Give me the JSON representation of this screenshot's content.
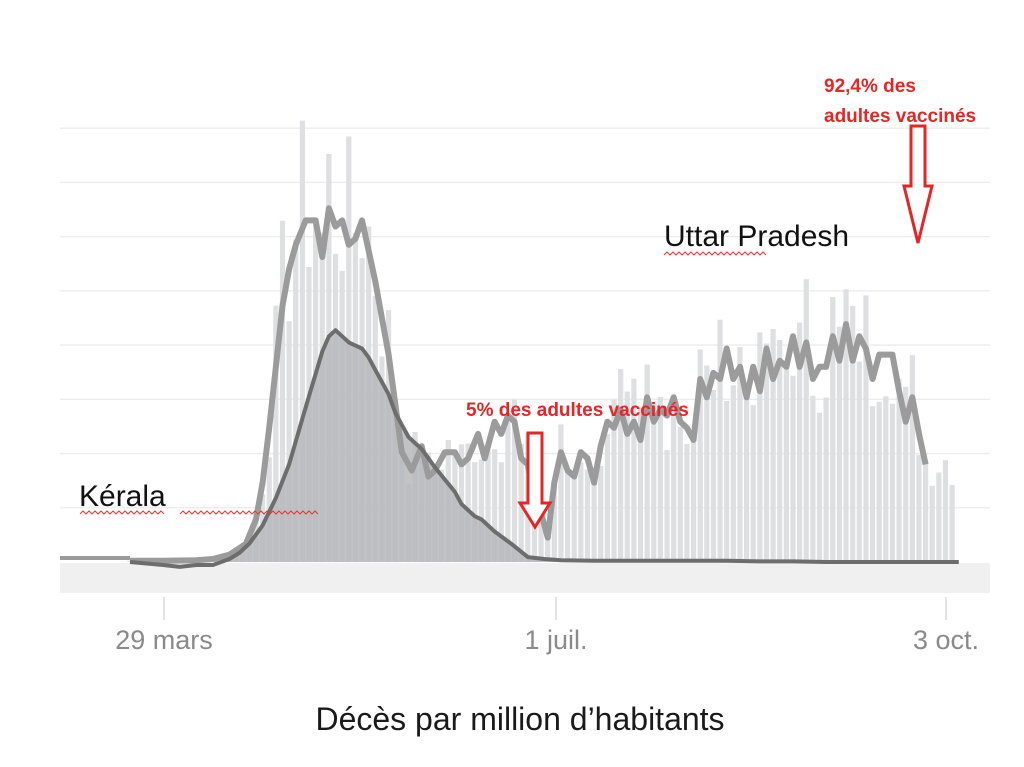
{
  "chart_data": {
    "type": "area",
    "title": "Décès par million d’habitants",
    "xlabel": "",
    "ylabel": "",
    "x_ticks": [
      "29 mars",
      "1 juil.",
      "3 oct."
    ],
    "grid": true,
    "series": [
      {
        "name": "Kérala",
        "label": "Kérala",
        "color": "#9b9b9b",
        "bar_color": "#dedfe1",
        "day_offsets": [
          0,
          10,
          20,
          25,
          30,
          35,
          38,
          40,
          42,
          44,
          46,
          48,
          50,
          53,
          56,
          58,
          60,
          62,
          64,
          66,
          68,
          70,
          72,
          74,
          76,
          78,
          80,
          82,
          85,
          88,
          90,
          92,
          95,
          98,
          100,
          102,
          105,
          107,
          110,
          112,
          114,
          116,
          118,
          120,
          122,
          124,
          126,
          128,
          130,
          132,
          134,
          136,
          138,
          140,
          142,
          144,
          146,
          148,
          150,
          152,
          154,
          156,
          158,
          160,
          162,
          164,
          166,
          168,
          170,
          172,
          174,
          176,
          178,
          180,
          182,
          184,
          186,
          188,
          190,
          192,
          194,
          196,
          198,
          200,
          202,
          204,
          206,
          208,
          210,
          212,
          214,
          216,
          218,
          220,
          222,
          224,
          226,
          228,
          230,
          232,
          234,
          236,
          238,
          240
        ],
        "values": [
          0.02,
          0.02,
          0.03,
          0.05,
          0.12,
          0.3,
          0.7,
          1.3,
          2.2,
          3.2,
          4.2,
          4.8,
          5.2,
          5.6,
          5.6,
          5.0,
          5.8,
          5.5,
          5.6,
          5.2,
          5.3,
          5.6,
          5.1,
          4.6,
          4.0,
          3.4,
          2.6,
          1.8,
          1.5,
          1.9,
          1.4,
          1.5,
          1.8,
          1.8,
          1.6,
          1.7,
          2.1,
          1.7,
          2.3,
          2.1,
          2.4,
          2.3,
          1.7,
          1.6,
          1.0,
          0.8,
          0.4,
          1.3,
          1.8,
          1.5,
          1.4,
          1.8,
          1.7,
          1.3,
          1.9,
          2.3,
          2.2,
          2.5,
          2.1,
          2.3,
          2.0,
          2.7,
          2.3,
          2.5,
          2.4,
          2.7,
          2.3,
          2.2,
          2.0,
          3.0,
          2.7,
          3.1,
          3.0,
          3.5,
          3.0,
          3.2,
          2.7,
          3.2,
          2.8,
          3.5,
          3.0,
          3.3,
          3.2,
          3.7,
          3.2,
          3.6,
          3.0,
          3.2,
          3.2,
          3.7,
          3.3,
          3.9,
          3.3,
          3.7,
          3.5,
          3.0,
          3.4,
          3.4,
          3.4,
          2.8,
          2.3,
          2.7,
          2.1,
          1.6
        ]
      },
      {
        "name": "Uttar Pradesh",
        "label": "Uttar Pradesh",
        "color": "#6d6d6d",
        "fill_color": "#b6b8bb",
        "day_offsets": [
          0,
          10,
          15,
          20,
          25,
          30,
          33,
          36,
          40,
          44,
          48,
          52,
          55,
          58,
          60,
          62,
          64,
          66,
          68,
          70,
          72,
          74,
          76,
          78,
          80,
          82,
          84,
          86,
          88,
          90,
          92,
          95,
          98,
          100,
          102,
          104,
          106,
          110,
          115,
          120,
          125,
          130,
          140,
          150,
          160,
          170,
          180,
          190,
          200,
          210,
          220,
          230,
          240,
          250
        ],
        "values": [
          0.0,
          -0.05,
          -0.08,
          -0.05,
          -0.05,
          0.05,
          0.15,
          0.3,
          0.6,
          1.05,
          1.6,
          2.35,
          2.9,
          3.45,
          3.7,
          3.8,
          3.7,
          3.6,
          3.55,
          3.5,
          3.35,
          3.15,
          2.95,
          2.75,
          2.45,
          2.25,
          2.05,
          1.95,
          1.85,
          1.7,
          1.55,
          1.35,
          1.15,
          0.95,
          0.85,
          0.75,
          0.7,
          0.5,
          0.3,
          0.08,
          0.05,
          0.03,
          0.02,
          0.02,
          0.02,
          0.02,
          0.02,
          0.01,
          0.01,
          0.0,
          0.0,
          0.0,
          0.0,
          0.0
        ]
      }
    ],
    "annotations": [
      {
        "text": "5% des adultes vaccinés",
        "color": "#e32626",
        "series": "Uttar Pradesh",
        "day_offset": 94
      },
      {
        "line1": "92,4% des",
        "line2": "adultes vaccinés",
        "color": "#e32626",
        "series": "Kérala",
        "day_offset": 227
      }
    ]
  }
}
